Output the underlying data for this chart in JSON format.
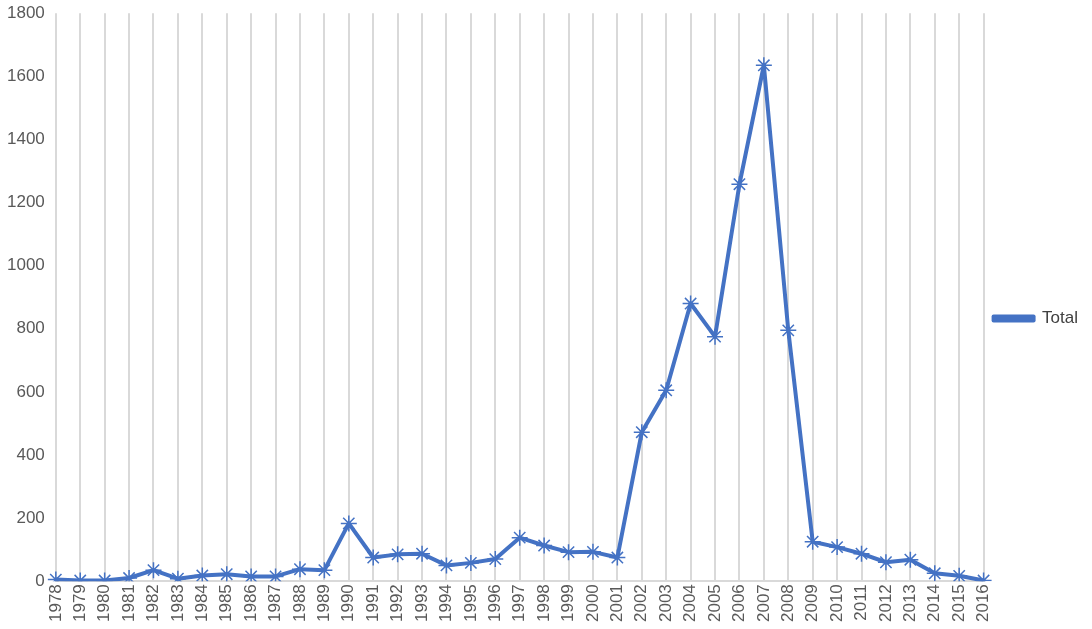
{
  "chart_data": {
    "type": "line",
    "categories": [
      "1978",
      "1979",
      "1980",
      "1981",
      "1982",
      "1983",
      "1984",
      "1985",
      "1986",
      "1987",
      "1988",
      "1989",
      "1990",
      "1991",
      "1992",
      "1993",
      "1994",
      "1995",
      "1996",
      "1997",
      "1998",
      "1999",
      "2000",
      "2001",
      "2002",
      "2003",
      "2004",
      "2005",
      "2006",
      "2007",
      "2008",
      "2009",
      "2010",
      "2011",
      "2012",
      "2013",
      "2014",
      "2015",
      "2016"
    ],
    "series": [
      {
        "name": "Total",
        "color": "#4472c4",
        "values": [
          5,
          2,
          2,
          10,
          35,
          8,
          18,
          22,
          15,
          15,
          38,
          35,
          183,
          75,
          85,
          87,
          50,
          58,
          70,
          138,
          113,
          92,
          93,
          75,
          472,
          605,
          880,
          775,
          1258,
          1635,
          795,
          125,
          108,
          87,
          60,
          68,
          25,
          17,
          2
        ]
      }
    ],
    "ylim": [
      0,
      1800
    ],
    "yticks": [
      0,
      200,
      400,
      600,
      800,
      1000,
      1200,
      1400,
      1600,
      1800
    ],
    "grid": "x",
    "legend": "right",
    "marker": "cross",
    "line_style": "solid"
  }
}
